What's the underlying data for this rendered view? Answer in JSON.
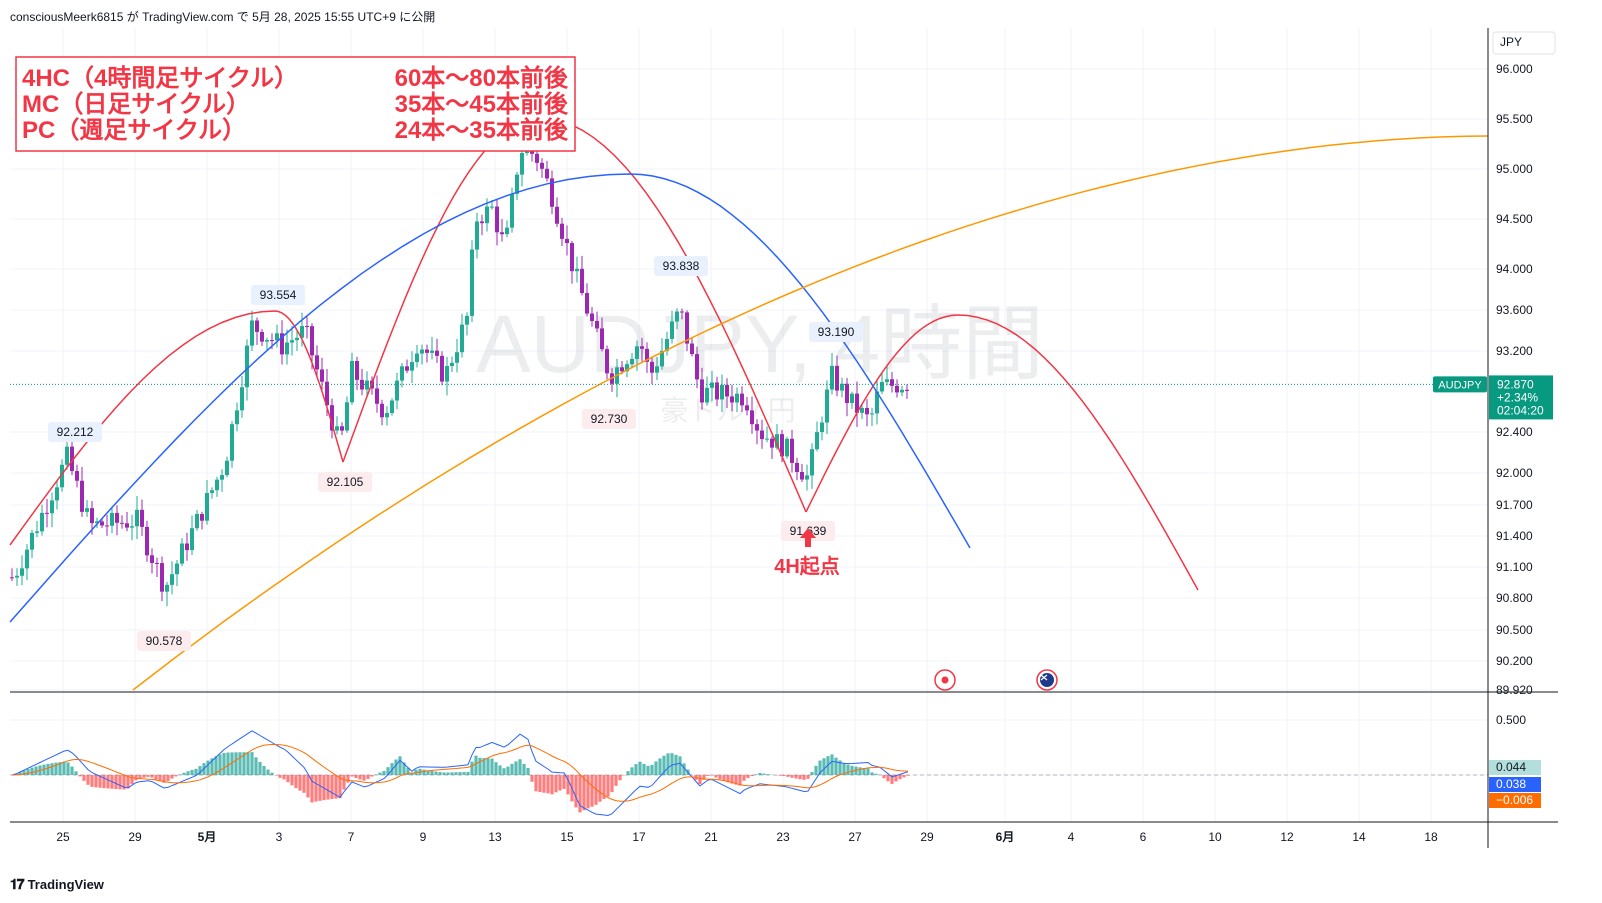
{
  "header": {
    "caption": "consciousMeerk6815 が TradingView.com で 5月 28, 2025 15:55 UTC+9 に公開"
  },
  "footer": {
    "brand": "TradingView"
  },
  "colors": {
    "up": "#22ab94",
    "down": "#9c27b0",
    "red": "#f23645",
    "blue": "#2962ff",
    "orange": "#ff9800",
    "price": "#089981",
    "macdBlue": "#2962ff",
    "signal": "#ff6d00"
  },
  "chart_data": [
    {
      "type": "candlestick",
      "symbol": "AUDJPY",
      "watermark": "AUDJPY, 4時間",
      "watermark_sub": "豪ドル / 円",
      "currency": "JPY",
      "y_ticks": [
        "96.000",
        "95.500",
        "95.000",
        "94.500",
        "94.000",
        "93.600",
        "93.200",
        "92.400",
        "92.000",
        "91.700",
        "91.400",
        "91.100",
        "90.800",
        "90.500",
        "90.200",
        "89.920"
      ],
      "x_ticks": [
        "25",
        "29",
        "5月",
        "3",
        "7",
        "9",
        "13",
        "15",
        "17",
        "21",
        "23",
        "27",
        "29",
        "6月",
        "4",
        "6",
        "10",
        "12",
        "14",
        "18"
      ],
      "last_price": {
        "label": "AUDJPY",
        "price": "92.870",
        "change": "+2.34%",
        "countdown": "02:04:20"
      },
      "annotations": {
        "pivots": [
          {
            "text": "92.212",
            "type": "high"
          },
          {
            "text": "90.578",
            "type": "low"
          },
          {
            "text": "93.554",
            "type": "high"
          },
          {
            "text": "92.105",
            "type": "low"
          },
          {
            "text": "93.838",
            "type": "high"
          },
          {
            "text": "92.730",
            "type": "low"
          },
          {
            "text": "93.190",
            "type": "high"
          },
          {
            "text": "91.639",
            "type": "low"
          }
        ],
        "info_box": [
          {
            "name": "4HC（4時間足サイクル）",
            "range": "60本〜80本前後"
          },
          {
            "name": "MC（日足サイクル）",
            "range": "35本〜45本前後"
          },
          {
            "name": "PC（週足サイクル）",
            "range": "24本〜35本前後"
          }
        ],
        "start_label": "4H起点"
      }
    },
    {
      "type": "macd",
      "y_ticks": [
        "0.500"
      ],
      "values": {
        "histogram": "0.044",
        "macd": "0.038",
        "signal": "−0.006"
      }
    }
  ]
}
